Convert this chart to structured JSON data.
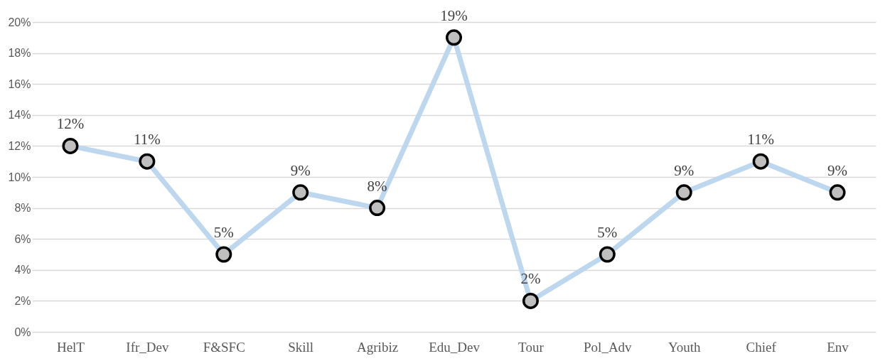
{
  "chart_data": {
    "type": "line",
    "categories": [
      "HelT",
      "Ifr_Dev",
      "F&SFC",
      "Skill",
      "Agribiz",
      "Edu_Dev",
      "Tour",
      "Pol_Adv",
      "Youth",
      "Chief",
      "Env"
    ],
    "series": [
      {
        "color": "#bdd7ee",
        "values": [
          12,
          11,
          5,
          9,
          8,
          19,
          2,
          5,
          9,
          11,
          9
        ],
        "value_labels": [
          "12%",
          "11%",
          "5%",
          "9%",
          "8%",
          "19%",
          "2%",
          "5%",
          "9%",
          "11%",
          "9%"
        ]
      }
    ],
    "ylim": [
      0,
      20
    ],
    "yticks": [
      {
        "value": 0,
        "label": "0%"
      },
      {
        "value": 2,
        "label": "2%"
      },
      {
        "value": 4,
        "label": "4%"
      },
      {
        "value": 6,
        "label": "6%"
      },
      {
        "value": 8,
        "label": "8%"
      },
      {
        "value": 10,
        "label": "10%"
      },
      {
        "value": 12,
        "label": "12%"
      },
      {
        "value": 14,
        "label": "14%"
      },
      {
        "value": 16,
        "label": "16%"
      },
      {
        "value": 18,
        "label": "18%"
      },
      {
        "value": 20,
        "label": "20%"
      }
    ],
    "grid": "y",
    "marker": "circle",
    "line_style": "solid"
  }
}
